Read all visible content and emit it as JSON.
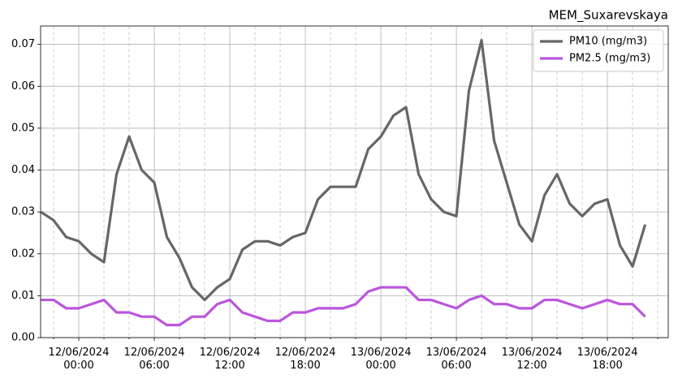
{
  "chart_data": {
    "type": "line",
    "title": "MEM_Suxarevskaya",
    "x": [
      "11/06/2024 21:00",
      "11/06/2024 22:00",
      "11/06/2024 23:00",
      "12/06/2024 00:00",
      "12/06/2024 01:00",
      "12/06/2024 02:00",
      "12/06/2024 03:00",
      "12/06/2024 04:00",
      "12/06/2024 05:00",
      "12/06/2024 06:00",
      "12/06/2024 07:00",
      "12/06/2024 08:00",
      "12/06/2024 09:00",
      "12/06/2024 10:00",
      "12/06/2024 11:00",
      "12/06/2024 12:00",
      "12/06/2024 13:00",
      "12/06/2024 14:00",
      "12/06/2024 15:00",
      "12/06/2024 16:00",
      "12/06/2024 17:00",
      "12/06/2024 18:00",
      "12/06/2024 19:00",
      "12/06/2024 20:00",
      "12/06/2024 21:00",
      "12/06/2024 22:00",
      "12/06/2024 23:00",
      "13/06/2024 00:00",
      "13/06/2024 01:00",
      "13/06/2024 02:00",
      "13/06/2024 03:00",
      "13/06/2024 04:00",
      "13/06/2024 05:00",
      "13/06/2024 06:00",
      "13/06/2024 07:00",
      "13/06/2024 08:00",
      "13/06/2024 09:00",
      "13/06/2024 10:00",
      "13/06/2024 11:00",
      "13/06/2024 12:00",
      "13/06/2024 13:00",
      "13/06/2024 14:00",
      "13/06/2024 15:00",
      "13/06/2024 16:00",
      "13/06/2024 17:00",
      "13/06/2024 18:00",
      "13/06/2024 19:00",
      "13/06/2024 20:00",
      "13/06/2024 21:00"
    ],
    "series": [
      {
        "name": "PM10 (mg/m3)",
        "color": "#666666",
        "values": [
          0.03,
          0.028,
          0.024,
          0.023,
          0.02,
          0.018,
          0.039,
          0.048,
          0.04,
          0.037,
          0.024,
          0.019,
          0.012,
          0.009,
          0.012,
          0.014,
          0.021,
          0.023,
          0.023,
          0.022,
          0.024,
          0.025,
          0.033,
          0.036,
          0.036,
          0.036,
          0.045,
          0.048,
          0.053,
          0.055,
          0.039,
          0.033,
          0.03,
          0.029,
          0.059,
          0.071,
          0.047,
          0.037,
          0.027,
          0.023,
          0.034,
          0.039,
          0.032,
          0.029,
          0.032,
          0.033,
          0.022,
          0.017,
          0.027
        ]
      },
      {
        "name": "PM2.5 (mg/m3)",
        "color": "#bb55dd",
        "values": [
          0.009,
          0.009,
          0.007,
          0.007,
          0.008,
          0.009,
          0.006,
          0.006,
          0.005,
          0.005,
          0.003,
          0.003,
          0.005,
          0.005,
          0.008,
          0.009,
          0.006,
          0.005,
          0.004,
          0.004,
          0.006,
          0.006,
          0.007,
          0.007,
          0.007,
          0.008,
          0.011,
          0.012,
          0.012,
          0.012,
          0.009,
          0.009,
          0.008,
          0.007,
          0.009,
          0.01,
          0.008,
          0.008,
          0.007,
          0.007,
          0.009,
          0.009,
          0.008,
          0.007,
          0.008,
          0.009,
          0.008,
          0.008,
          0.005
        ]
      }
    ],
    "xlim": [
      "11/06/2024 20:58",
      "13/06/2024 22:50"
    ],
    "xticks": [
      "12/06/2024 00:00",
      "12/06/2024 06:00",
      "12/06/2024 12:00",
      "12/06/2024 18:00",
      "13/06/2024 00:00",
      "13/06/2024 06:00",
      "13/06/2024 12:00",
      "13/06/2024 18:00"
    ],
    "xminorticks": [
      "11/06/2024 22:00",
      "12/06/2024 02:00",
      "12/06/2024 04:00",
      "12/06/2024 08:00",
      "12/06/2024 10:00",
      "12/06/2024 14:00",
      "12/06/2024 16:00",
      "12/06/2024 20:00",
      "12/06/2024 22:00",
      "13/06/2024 02:00",
      "13/06/2024 04:00",
      "13/06/2024 08:00",
      "13/06/2024 10:00",
      "13/06/2024 14:00",
      "13/06/2024 16:00",
      "13/06/2024 20:00",
      "13/06/2024 22:00"
    ],
    "ylim": [
      0,
      0.0744
    ],
    "yticks": [
      {
        "value": 0,
        "label": "0.00"
      },
      {
        "value": 0.01,
        "label": "0.01"
      },
      {
        "value": 0.02,
        "label": "0.02"
      },
      {
        "value": 0.03,
        "label": "0.03"
      },
      {
        "value": 0.04,
        "label": "0.04"
      },
      {
        "value": 0.05,
        "label": "0.05"
      },
      {
        "value": 0.06,
        "label": "0.06"
      },
      {
        "value": 0.07,
        "label": "0.07"
      }
    ],
    "grid": true,
    "legend": "upper right"
  }
}
